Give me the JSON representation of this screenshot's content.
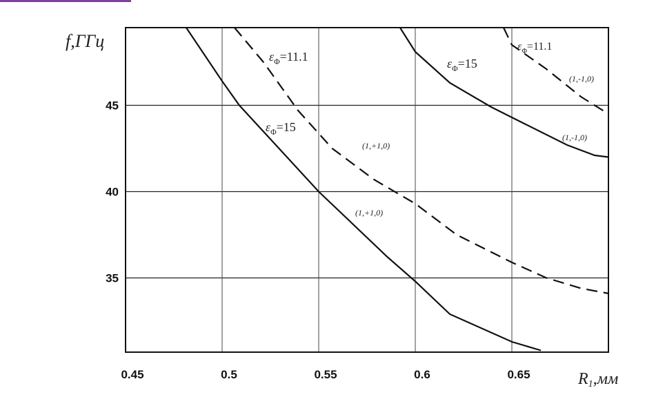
{
  "chart_data": {
    "type": "line",
    "x_label": {
      "text": "R",
      "subscript": "1",
      "unit": ",мм"
    },
    "y_label": "f,ГГц",
    "xlim": [
      0.45,
      0.7
    ],
    "xticks": [
      0.45,
      0.5,
      0.55,
      0.6,
      0.65
    ],
    "ylim": [
      30.7,
      49.5
    ],
    "yticks": [
      35,
      40,
      45
    ],
    "grid": true,
    "series": [
      {
        "color": "#111111",
        "line_style": "solid",
        "x": [
          0.4814,
          0.5,
          0.5089,
          0.55,
          0.5857,
          0.6,
          0.6179,
          0.65,
          0.665
        ],
        "values": [
          49.5,
          46.4,
          45,
          40,
          36.2,
          34.8,
          32.9,
          31.3,
          30.8
        ]
      },
      {
        "color": "#111111",
        "line_style": "dashed",
        "x": [
          0.5064,
          0.5214,
          0.5393,
          0.557,
          0.5786,
          0.6,
          0.6214,
          0.65,
          0.6679,
          0.6857,
          0.7
        ],
        "values": [
          49.5,
          47.5,
          44.7,
          42.5,
          40.7,
          39.3,
          37.5,
          35.9,
          35,
          34.4,
          34.1
        ]
      },
      {
        "color": "#111111",
        "line_style": "solid",
        "x": [
          0.5921,
          0.6,
          0.6179,
          0.6393,
          0.6571,
          0.6786,
          0.6929,
          0.7
        ],
        "values": [
          49.5,
          48.1,
          46.3,
          44.9,
          43.9,
          42.7,
          42.1,
          42.0
        ]
      },
      {
        "color": "#111111",
        "line_style": "dashed",
        "x": [
          0.6457,
          0.65,
          0.6679,
          0.6857,
          0.7
        ],
        "values": [
          49.5,
          48.5,
          47.1,
          45.5,
          44.5
        ]
      }
    ],
    "annotations": [
      {
        "symbol": "ε",
        "subscript": "Φ",
        "text": "=11.1"
      },
      {
        "symbol": "ε",
        "subscript": "Φ",
        "text": "=15"
      },
      {
        "text": "(1,+1,0)"
      },
      {
        "text": "(1,+1,0)"
      },
      {
        "symbol": "ε",
        "subscript": "Φ",
        "text": "=15"
      },
      {
        "symbol": "ε",
        "subscript": "Φ",
        "text": "=11.1"
      },
      {
        "text": "(1,-1,0)"
      },
      {
        "text": "(1,-1,0)"
      }
    ]
  }
}
